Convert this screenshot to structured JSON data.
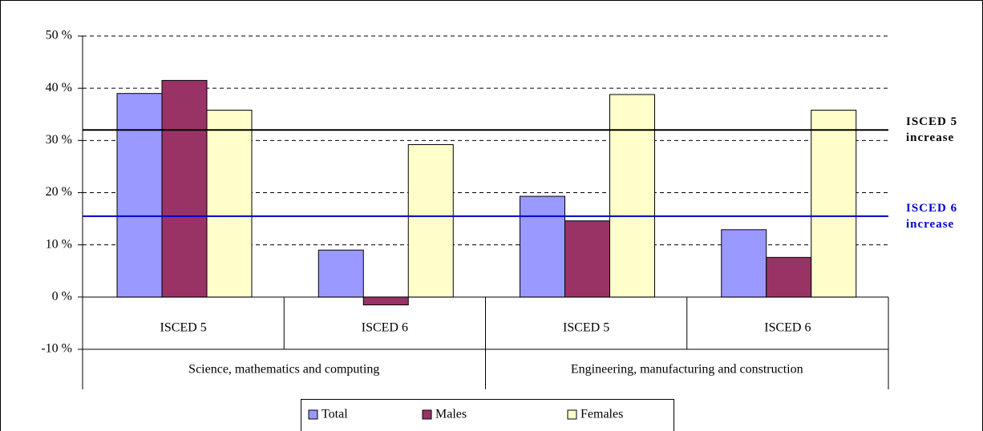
{
  "chart_data": {
    "type": "bar",
    "categories": [
      "ISCED 5",
      "ISCED 6",
      "ISCED 5",
      "ISCED 6"
    ],
    "groups": [
      "Science, mathematics and computing",
      "Engineering, manufacturing and construction"
    ],
    "series": [
      {
        "name": "Total",
        "color": "#9999ff",
        "values": [
          39,
          9,
          19.3,
          12.9
        ]
      },
      {
        "name": "Males",
        "color": "#993366",
        "values": [
          41.5,
          -1.5,
          14.6,
          7.6
        ]
      },
      {
        "name": "Females",
        "color": "#ffffcc",
        "values": [
          35.8,
          29.2,
          38.8,
          35.8
        ]
      }
    ],
    "reference_lines": [
      {
        "label": "ISCED 5 increase",
        "value": 32,
        "color": "#000000"
      },
      {
        "label": "ISCED 6 increase",
        "value": 15.5,
        "color": "#0000cc"
      }
    ],
    "ylim": [
      -10,
      50
    ],
    "yticks": [
      {
        "value": -10,
        "label": "-10 %"
      },
      {
        "value": 0,
        "label": "0 %"
      },
      {
        "value": 10,
        "label": "10 %"
      },
      {
        "value": 20,
        "label": "20 %"
      },
      {
        "value": 30,
        "label": "30 %"
      },
      {
        "value": 40,
        "label": "40 %"
      },
      {
        "value": 50,
        "label": "50 %"
      }
    ],
    "grid": true,
    "legend": "bottom"
  }
}
